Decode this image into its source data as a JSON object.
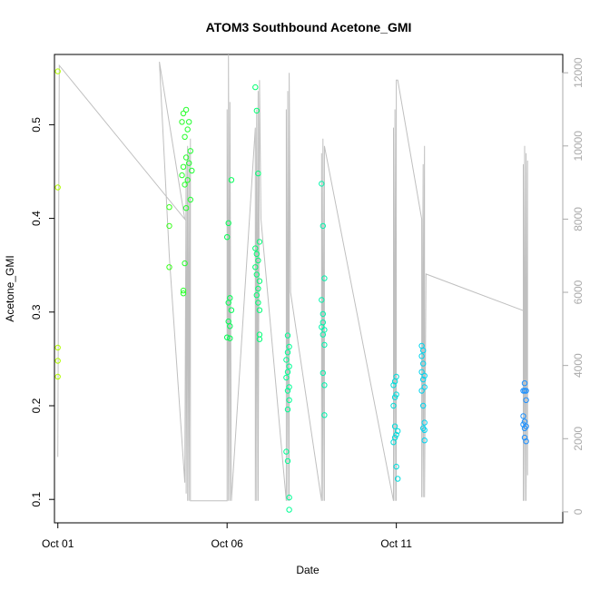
{
  "chart_data": {
    "type": "scatter",
    "title": "ATOM3 Southbound Acetone_GMI",
    "xlabel": "Date",
    "ylabel": "Acetone_GMI",
    "x_ticks": [
      "Oct 01",
      "Oct 06",
      "Oct 11"
    ],
    "y_ticks": [
      "0.1",
      "0.2",
      "0.3",
      "0.4",
      "0.5"
    ],
    "y_right_ticks": [
      "0",
      "2000",
      "4000",
      "6000",
      "8000",
      "10000",
      "12000"
    ],
    "xlim": [
      "2017-09-30T21:36",
      "2017-10-15T22:00"
    ],
    "ylim": [
      0.075,
      0.575
    ],
    "y_right_lim": [
      -300,
      12500
    ],
    "grid": false,
    "legend": "none",
    "colors": {
      "axis": "#000000",
      "right_axis": "#aaaaaa",
      "altitude_line": "#bfbfbf",
      "point_gradient": [
        "#b3ff00",
        "#66ff00",
        "#00ff44",
        "#00ff99",
        "#00e6cc",
        "#00ccff",
        "#1e90ff"
      ]
    },
    "series": [
      {
        "points": [
          {
            "x": "2017-10-01T00:00",
            "y": 0.557
          },
          {
            "x": "2017-10-01T00:00",
            "y": 0.433
          },
          {
            "x": "2017-10-01T00:00",
            "y": 0.262
          },
          {
            "x": "2017-10-01T00:00",
            "y": 0.248
          },
          {
            "x": "2017-10-01T00:00",
            "y": 0.231
          },
          {
            "x": "2017-10-04T07:00",
            "y": 0.412
          },
          {
            "x": "2017-10-04T07:00",
            "y": 0.392
          },
          {
            "x": "2017-10-04T07:00",
            "y": 0.348
          },
          {
            "x": "2017-10-04T19:00",
            "y": 0.516
          },
          {
            "x": "2017-10-04T17:00",
            "y": 0.512
          },
          {
            "x": "2017-10-04T21:00",
            "y": 0.503
          },
          {
            "x": "2017-10-04T16:00",
            "y": 0.503
          },
          {
            "x": "2017-10-04T20:00",
            "y": 0.495
          },
          {
            "x": "2017-10-04T18:00",
            "y": 0.487
          },
          {
            "x": "2017-10-04T22:00",
            "y": 0.472
          },
          {
            "x": "2017-10-04T19:00",
            "y": 0.465
          },
          {
            "x": "2017-10-04T21:00",
            "y": 0.459
          },
          {
            "x": "2017-10-04T17:00",
            "y": 0.455
          },
          {
            "x": "2017-10-04T23:00",
            "y": 0.451
          },
          {
            "x": "2017-10-04T16:00",
            "y": 0.446
          },
          {
            "x": "2017-10-04T20:00",
            "y": 0.441
          },
          {
            "x": "2017-10-04T18:00",
            "y": 0.436
          },
          {
            "x": "2017-10-04T22:00",
            "y": 0.42
          },
          {
            "x": "2017-10-04T19:00",
            "y": 0.411
          },
          {
            "x": "2017-10-04T18:00",
            "y": 0.352
          },
          {
            "x": "2017-10-04T17:00",
            "y": 0.323
          },
          {
            "x": "2017-10-04T17:00",
            "y": 0.32
          },
          {
            "x": "2017-10-06T03:00",
            "y": 0.441
          },
          {
            "x": "2017-10-06T01:00",
            "y": 0.395
          },
          {
            "x": "2017-10-06T00:00",
            "y": 0.38
          },
          {
            "x": "2017-10-06T02:00",
            "y": 0.315
          },
          {
            "x": "2017-10-06T01:00",
            "y": 0.31
          },
          {
            "x": "2017-10-06T03:00",
            "y": 0.302
          },
          {
            "x": "2017-10-06T01:00",
            "y": 0.29
          },
          {
            "x": "2017-10-06T02:00",
            "y": 0.285
          },
          {
            "x": "2017-10-06T00:00",
            "y": 0.273
          },
          {
            "x": "2017-10-06T02:00",
            "y": 0.272
          },
          {
            "x": "2017-10-06T20:00",
            "y": 0.54
          },
          {
            "x": "2017-10-06T21:00",
            "y": 0.515
          },
          {
            "x": "2017-10-06T22:00",
            "y": 0.448
          },
          {
            "x": "2017-10-06T23:00",
            "y": 0.375
          },
          {
            "x": "2017-10-06T20:00",
            "y": 0.368
          },
          {
            "x": "2017-10-06T21:00",
            "y": 0.362
          },
          {
            "x": "2017-10-06T22:00",
            "y": 0.355
          },
          {
            "x": "2017-10-06T20:00",
            "y": 0.348
          },
          {
            "x": "2017-10-06T21:00",
            "y": 0.34
          },
          {
            "x": "2017-10-06T23:00",
            "y": 0.333
          },
          {
            "x": "2017-10-06T22:00",
            "y": 0.325
          },
          {
            "x": "2017-10-06T21:00",
            "y": 0.318
          },
          {
            "x": "2017-10-06T22:00",
            "y": 0.31
          },
          {
            "x": "2017-10-06T23:00",
            "y": 0.302
          },
          {
            "x": "2017-10-06T23:00",
            "y": 0.276
          },
          {
            "x": "2017-10-06T23:00",
            "y": 0.271
          },
          {
            "x": "2017-10-07T19:00",
            "y": 0.275
          },
          {
            "x": "2017-10-07T20:00",
            "y": 0.263
          },
          {
            "x": "2017-10-07T19:00",
            "y": 0.257
          },
          {
            "x": "2017-10-07T18:00",
            "y": 0.249
          },
          {
            "x": "2017-10-07T20:00",
            "y": 0.242
          },
          {
            "x": "2017-10-07T19:00",
            "y": 0.236
          },
          {
            "x": "2017-10-07T18:00",
            "y": 0.23
          },
          {
            "x": "2017-10-07T20:00",
            "y": 0.22
          },
          {
            "x": "2017-10-07T19:00",
            "y": 0.216
          },
          {
            "x": "2017-10-07T20:00",
            "y": 0.206
          },
          {
            "x": "2017-10-07T19:00",
            "y": 0.196
          },
          {
            "x": "2017-10-07T18:00",
            "y": 0.151
          },
          {
            "x": "2017-10-07T19:00",
            "y": 0.141
          },
          {
            "x": "2017-10-07T20:00",
            "y": 0.102
          },
          {
            "x": "2017-10-07T20:00",
            "y": 0.089
          },
          {
            "x": "2017-10-08T19:00",
            "y": 0.437
          },
          {
            "x": "2017-10-08T20:00",
            "y": 0.392
          },
          {
            "x": "2017-10-08T21:00",
            "y": 0.336
          },
          {
            "x": "2017-10-08T19:00",
            "y": 0.313
          },
          {
            "x": "2017-10-08T20:00",
            "y": 0.298
          },
          {
            "x": "2017-10-08T20:00",
            "y": 0.289
          },
          {
            "x": "2017-10-08T19:00",
            "y": 0.284
          },
          {
            "x": "2017-10-08T21:00",
            "y": 0.281
          },
          {
            "x": "2017-10-08T20:00",
            "y": 0.276
          },
          {
            "x": "2017-10-08T21:00",
            "y": 0.265
          },
          {
            "x": "2017-10-08T20:00",
            "y": 0.235
          },
          {
            "x": "2017-10-08T21:00",
            "y": 0.222
          },
          {
            "x": "2017-10-08T21:00",
            "y": 0.19
          },
          {
            "x": "2017-10-11T00:00",
            "y": 0.231
          },
          {
            "x": "2017-10-10T23:00",
            "y": 0.226
          },
          {
            "x": "2017-10-10T22:00",
            "y": 0.222
          },
          {
            "x": "2017-10-11T00:00",
            "y": 0.212
          },
          {
            "x": "2017-10-10T23:00",
            "y": 0.209
          },
          {
            "x": "2017-10-10T22:00",
            "y": 0.2
          },
          {
            "x": "2017-10-10T23:00",
            "y": 0.178
          },
          {
            "x": "2017-10-11T01:00",
            "y": 0.173
          },
          {
            "x": "2017-10-11T00:00",
            "y": 0.169
          },
          {
            "x": "2017-10-10T23:00",
            "y": 0.166
          },
          {
            "x": "2017-10-10T22:00",
            "y": 0.161
          },
          {
            "x": "2017-10-11T00:00",
            "y": 0.135
          },
          {
            "x": "2017-10-11T01:00",
            "y": 0.122
          },
          {
            "x": "2017-10-11T18:00",
            "y": 0.264
          },
          {
            "x": "2017-10-11T19:00",
            "y": 0.259
          },
          {
            "x": "2017-10-11T18:00",
            "y": 0.253
          },
          {
            "x": "2017-10-11T19:00",
            "y": 0.245
          },
          {
            "x": "2017-10-11T18:00",
            "y": 0.236
          },
          {
            "x": "2017-10-11T20:00",
            "y": 0.232
          },
          {
            "x": "2017-10-11T19:00",
            "y": 0.228
          },
          {
            "x": "2017-10-11T20:00",
            "y": 0.22
          },
          {
            "x": "2017-10-11T18:00",
            "y": 0.216
          },
          {
            "x": "2017-10-11T19:00",
            "y": 0.2
          },
          {
            "x": "2017-10-11T20:00",
            "y": 0.182
          },
          {
            "x": "2017-10-11T19:00",
            "y": 0.176
          },
          {
            "x": "2017-10-11T20:00",
            "y": 0.174
          },
          {
            "x": "2017-10-11T20:00",
            "y": 0.163
          },
          {
            "x": "2017-10-14T19:00",
            "y": 0.224
          },
          {
            "x": "2017-10-14T20:00",
            "y": 0.216
          },
          {
            "x": "2017-10-14T18:00",
            "y": 0.216
          },
          {
            "x": "2017-10-14T19:00",
            "y": 0.216
          },
          {
            "x": "2017-10-14T20:00",
            "y": 0.206
          },
          {
            "x": "2017-10-14T18:00",
            "y": 0.189
          },
          {
            "x": "2017-10-14T19:00",
            "y": 0.183
          },
          {
            "x": "2017-10-14T18:00",
            "y": 0.18
          },
          {
            "x": "2017-10-14T20:00",
            "y": 0.178
          },
          {
            "x": "2017-10-14T19:00",
            "y": 0.176
          },
          {
            "x": "2017-10-14T19:00",
            "y": 0.166
          },
          {
            "x": "2017-10-14T20:00",
            "y": 0.162
          }
        ]
      },
      {
        "axis": "right",
        "points": [
          {
            "x": "2017-10-01T00:00",
            "y": 1500
          },
          {
            "x": "2017-10-01T01:00",
            "y": 12200
          },
          {
            "x": "2017-10-04T18:00",
            "y": 8000
          },
          {
            "x": "2017-10-04T00:00",
            "y": 12300
          },
          {
            "x": "2017-10-04T07:00",
            "y": 7000
          },
          {
            "x": "2017-10-04T18:00",
            "y": 800
          },
          {
            "x": "2017-10-04T19:00",
            "y": 9500
          },
          {
            "x": "2017-10-04T19:00",
            "y": 500
          },
          {
            "x": "2017-10-04T20:00",
            "y": 10000
          },
          {
            "x": "2017-10-04T20:00",
            "y": 300
          },
          {
            "x": "2017-10-04T21:00",
            "y": 9800
          },
          {
            "x": "2017-10-04T21:00",
            "y": 300
          },
          {
            "x": "2017-10-04T22:00",
            "y": 10200
          },
          {
            "x": "2017-10-04T22:00",
            "y": 300
          },
          {
            "x": "2017-10-06T00:00",
            "y": 300
          },
          {
            "x": "2017-10-06T00:00",
            "y": 11000
          },
          {
            "x": "2017-10-06T01:00",
            "y": 300
          },
          {
            "x": "2017-10-06T01:00",
            "y": 12500
          },
          {
            "x": "2017-10-06T02:00",
            "y": 300
          },
          {
            "x": "2017-10-06T02:00",
            "y": 11200
          },
          {
            "x": "2017-10-06T03:00",
            "y": 300
          },
          {
            "x": "2017-10-06T20:00",
            "y": 10500
          },
          {
            "x": "2017-10-06T20:00",
            "y": 300
          },
          {
            "x": "2017-10-06T21:00",
            "y": 11000
          },
          {
            "x": "2017-10-06T21:00",
            "y": 300
          },
          {
            "x": "2017-10-06T22:00",
            "y": 11500
          },
          {
            "x": "2017-10-06T22:00",
            "y": 300
          },
          {
            "x": "2017-10-06T23:00",
            "y": 11800
          },
          {
            "x": "2017-10-07T00:00",
            "y": 8000
          },
          {
            "x": "2017-10-07T18:00",
            "y": 300
          },
          {
            "x": "2017-10-07T18:00",
            "y": 11000
          },
          {
            "x": "2017-10-07T19:00",
            "y": 300
          },
          {
            "x": "2017-10-07T19:00",
            "y": 11500
          },
          {
            "x": "2017-10-07T20:00",
            "y": 300
          },
          {
            "x": "2017-10-07T20:00",
            "y": 12000
          },
          {
            "x": "2017-10-07T21:00",
            "y": 6000
          },
          {
            "x": "2017-10-08T19:00",
            "y": 300
          },
          {
            "x": "2017-10-08T19:00",
            "y": 9800
          },
          {
            "x": "2017-10-08T20:00",
            "y": 300
          },
          {
            "x": "2017-10-08T20:00",
            "y": 10200
          },
          {
            "x": "2017-10-08T21:00",
            "y": 300
          },
          {
            "x": "2017-10-08T21:00",
            "y": 10000
          },
          {
            "x": "2017-10-10T22:00",
            "y": 300
          },
          {
            "x": "2017-10-10T22:00",
            "y": 10500
          },
          {
            "x": "2017-10-10T23:00",
            "y": 300
          },
          {
            "x": "2017-10-10T23:00",
            "y": 11000
          },
          {
            "x": "2017-10-11T00:00",
            "y": 300
          },
          {
            "x": "2017-10-11T00:00",
            "y": 11800
          },
          {
            "x": "2017-10-11T01:00",
            "y": 11800
          },
          {
            "x": "2017-10-11T18:00",
            "y": 8000
          },
          {
            "x": "2017-10-11T18:00",
            "y": 400
          },
          {
            "x": "2017-10-11T19:00",
            "y": 9500
          },
          {
            "x": "2017-10-11T19:00",
            "y": 400
          },
          {
            "x": "2017-10-11T20:00",
            "y": 10000
          },
          {
            "x": "2017-10-11T20:00",
            "y": 400
          },
          {
            "x": "2017-10-11T21:00",
            "y": 6500
          },
          {
            "x": "2017-10-14T18:00",
            "y": 5500
          },
          {
            "x": "2017-10-14T18:00",
            "y": 9500
          },
          {
            "x": "2017-10-14T18:00",
            "y": 300
          },
          {
            "x": "2017-10-14T19:00",
            "y": 10000
          },
          {
            "x": "2017-10-14T19:00",
            "y": 300
          },
          {
            "x": "2017-10-14T20:00",
            "y": 9800
          },
          {
            "x": "2017-10-14T20:00",
            "y": 300
          },
          {
            "x": "2017-10-14T21:00",
            "y": 9600
          },
          {
            "x": "2017-10-14T21:00",
            "y": 1000
          }
        ]
      }
    ]
  }
}
